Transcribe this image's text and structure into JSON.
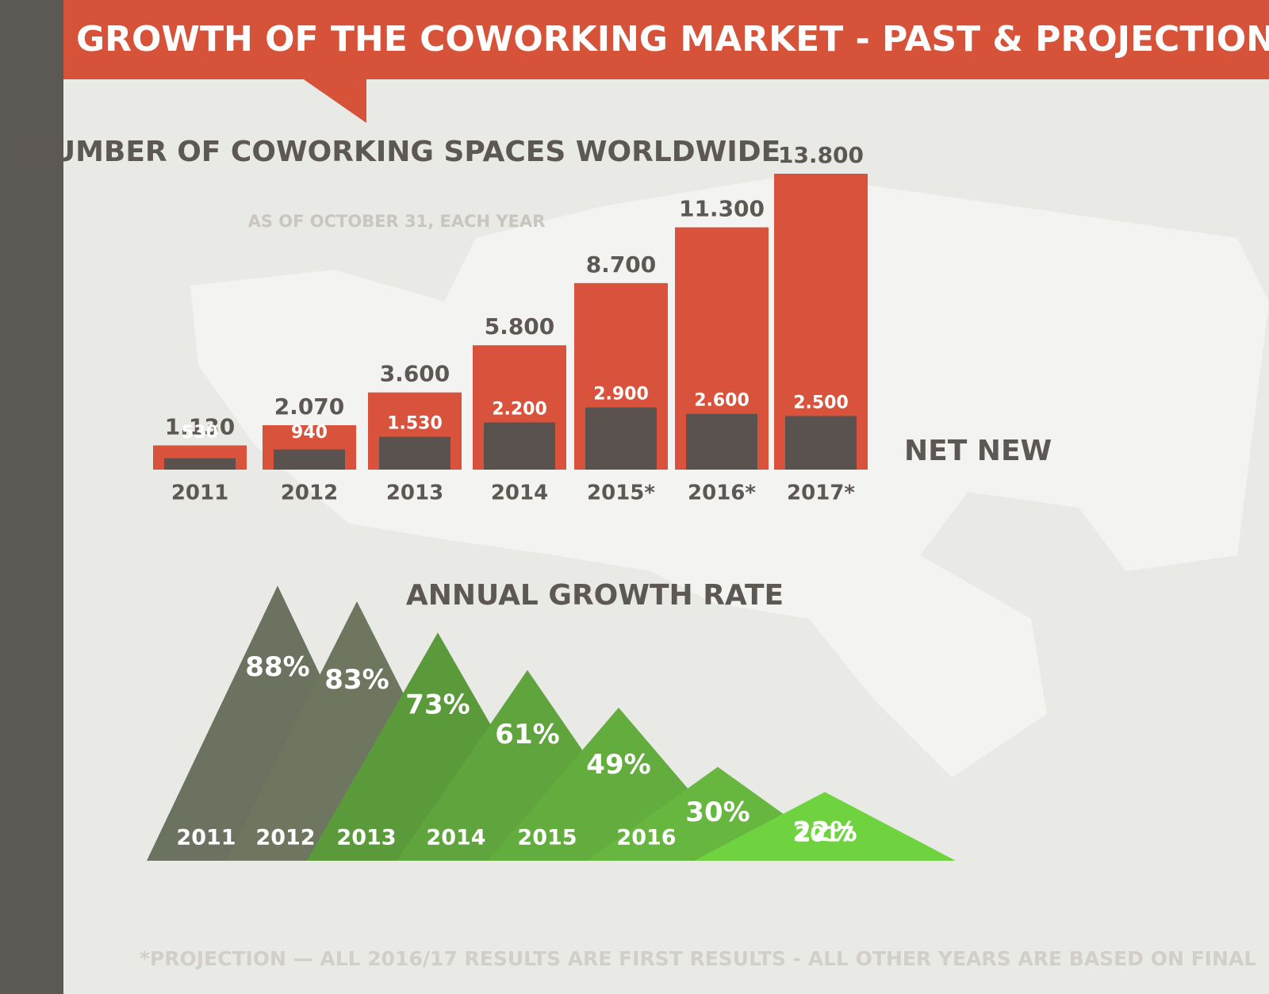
{
  "title": "GROWTH OF THE COWORKING MARKET - PAST & PROJECTION",
  "footnote": "*PROJECTION — ALL 2016/17 RESULTS ARE FIRST RESULTS - ALL OTHER YEARS ARE BASED ON FINAL",
  "chart_data": [
    {
      "type": "bar",
      "title": "NUMBER OF COWORKING SPACES WORLDWIDE",
      "subtitle": "AS OF OCTOBER 31, EACH YEAR",
      "categories": [
        "2011",
        "2012",
        "2013",
        "2014",
        "2015*",
        "2016*",
        "2017*"
      ],
      "series": [
        {
          "color": "#d9533c",
          "values": [
            1130,
            2070,
            3600,
            5800,
            8700,
            11300,
            13800
          ],
          "value_labels": [
            "1.130",
            "2.070",
            "3.600",
            "5.800",
            "8.700",
            "11.300",
            "13.800"
          ]
        },
        {
          "name": "NET NEW",
          "color": "#5a524e",
          "values": [
            530,
            940,
            1530,
            2200,
            2900,
            2600,
            2500
          ],
          "value_labels": [
            "530",
            "940",
            "1.530",
            "2.200",
            "2.900",
            "2.600",
            "2.500"
          ]
        }
      ]
    },
    {
      "type": "mountain",
      "title": "ANNUAL GROWTH RATE",
      "categories": [
        "2011",
        "2012",
        "2013",
        "2014",
        "2015",
        "2016",
        "2017"
      ],
      "values": [
        88,
        83,
        73,
        61,
        49,
        30,
        22
      ],
      "value_labels": [
        "88%",
        "83%",
        "73%",
        "61%",
        "49%",
        "30%",
        "22%"
      ],
      "colors": [
        "#6b7260",
        "#6e765f",
        "#5b9a3b",
        "#5fa43c",
        "#63ac3e",
        "#66b640",
        "#6fd340"
      ]
    }
  ]
}
